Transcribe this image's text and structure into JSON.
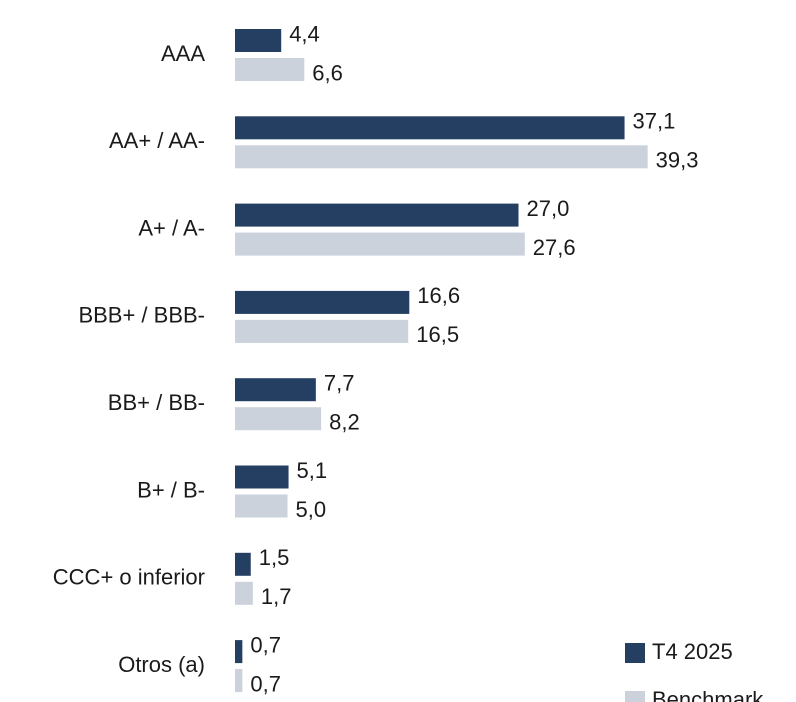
{
  "chart_data": {
    "type": "bar",
    "orientation": "horizontal",
    "categories": [
      "AAA",
      "AA+ / AA-",
      "A+ / A-",
      "BBB+ / BBB-",
      "BB+ / BB-",
      "B+ / B-",
      "CCC+ o inferior",
      "Otros (a)"
    ],
    "series": [
      {
        "name": "T4 2025",
        "color": "#253f63",
        "values": [
          4.4,
          37.1,
          27.0,
          16.6,
          7.7,
          5.1,
          1.5,
          0.7
        ],
        "value_labels": [
          "4,4",
          "37,1",
          "27,0",
          "16,6",
          "7,7",
          "5,1",
          "1,5",
          "0,7"
        ]
      },
      {
        "name": "Benchmark",
        "color": "#cbd2dc",
        "values": [
          6.6,
          39.3,
          27.6,
          16.5,
          8.2,
          5.0,
          1.7,
          0.7
        ],
        "value_labels": [
          "6,6",
          "39,3",
          "27,6",
          "16,5",
          "8,2",
          "5,0",
          "1,7",
          "0,7"
        ]
      }
    ],
    "legend": "lower right"
  }
}
